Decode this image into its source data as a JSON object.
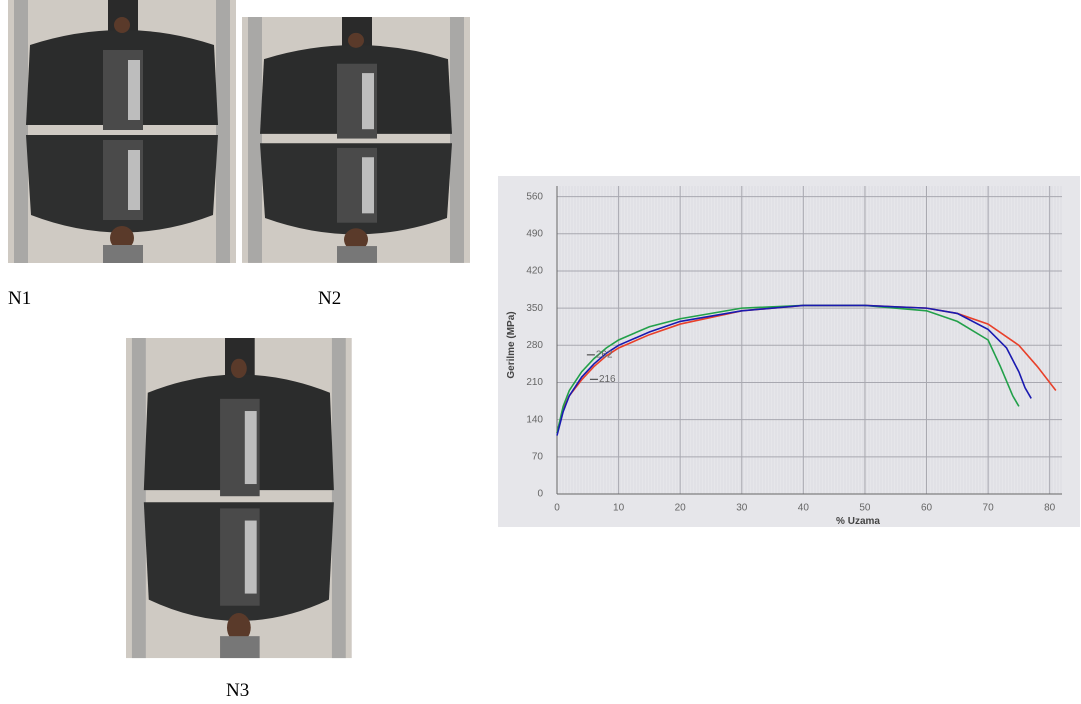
{
  "photos": [
    {
      "label": "N1"
    },
    {
      "label": "N2"
    },
    {
      "label": "N3"
    }
  ],
  "chart_data": {
    "type": "line",
    "ylabel": "Gerilme (MPa)",
    "xlabel": "% Uzama",
    "xlim": [
      0,
      82
    ],
    "ylim": [
      0,
      580
    ],
    "xticks": [
      0,
      10,
      20,
      30,
      40,
      50,
      60,
      70,
      80
    ],
    "yticks": [
      0,
      70,
      140,
      210,
      280,
      350,
      420,
      490,
      560
    ],
    "grid": true,
    "series": [
      {
        "color": "#e8402a",
        "x": [
          0,
          1,
          2,
          4,
          6,
          8,
          10,
          15,
          20,
          30,
          40,
          50,
          60,
          65,
          70,
          75,
          78,
          80,
          81
        ],
        "values": [
          115,
          160,
          185,
          215,
          240,
          260,
          275,
          300,
          320,
          345,
          355,
          355,
          350,
          340,
          320,
          280,
          240,
          210,
          195
        ]
      },
      {
        "color": "#22a04a",
        "x": [
          0,
          1,
          2,
          4,
          6,
          8,
          10,
          15,
          20,
          30,
          40,
          50,
          60,
          65,
          70,
          72,
          74,
          75
        ],
        "values": [
          115,
          165,
          195,
          230,
          255,
          275,
          290,
          315,
          330,
          350,
          355,
          355,
          345,
          325,
          290,
          240,
          185,
          165
        ]
      },
      {
        "color": "#1a1ab0",
        "x": [
          0,
          1,
          2,
          4,
          6,
          8,
          10,
          15,
          20,
          30,
          40,
          50,
          60,
          65,
          70,
          73,
          75,
          76,
          77
        ],
        "values": [
          110,
          155,
          185,
          220,
          245,
          265,
          280,
          305,
          325,
          345,
          355,
          355,
          350,
          340,
          310,
          275,
          230,
          200,
          180
        ]
      }
    ],
    "annotations": [
      {
        "x": 5.5,
        "y": 262
      },
      {
        "x": 6,
        "y": 216
      }
    ]
  }
}
